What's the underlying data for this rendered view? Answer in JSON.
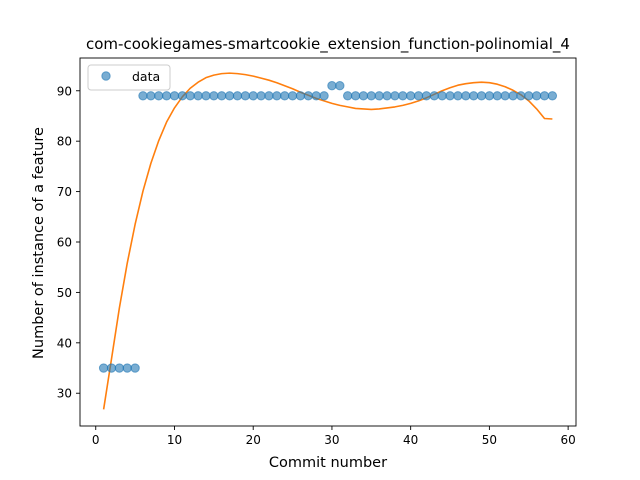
{
  "chart_data": {
    "type": "scatter",
    "title": "com-cookiegames-smartcookie_extension_function-polinomial_4",
    "xlabel": "Commit number",
    "ylabel": "Number of instance of a feature",
    "xlim": [
      -2,
      61
    ],
    "ylim": [
      23.5,
      96.5
    ],
    "xticks": [
      0,
      10,
      20,
      30,
      40,
      50,
      60
    ],
    "yticks": [
      30,
      40,
      50,
      60,
      70,
      80,
      90
    ],
    "legend": {
      "position": "top-left",
      "entries": [
        "data"
      ]
    },
    "grid": false,
    "series": [
      {
        "name": "data",
        "kind": "scatter",
        "color": "#1f77b4",
        "x": [
          1,
          2,
          3,
          4,
          5,
          6,
          7,
          8,
          9,
          10,
          11,
          12,
          13,
          14,
          15,
          16,
          17,
          18,
          19,
          20,
          21,
          22,
          23,
          24,
          25,
          26,
          27,
          28,
          29,
          30,
          31,
          32,
          33,
          34,
          35,
          36,
          37,
          38,
          39,
          40,
          41,
          42,
          43,
          44,
          45,
          46,
          47,
          48,
          49,
          50,
          51,
          52,
          53,
          54,
          55,
          56,
          57,
          58
        ],
        "y": [
          35,
          35,
          35,
          35,
          35,
          89,
          89,
          89,
          89,
          89,
          89,
          89,
          89,
          89,
          89,
          89,
          89,
          89,
          89,
          89,
          89,
          89,
          89,
          89,
          89,
          89,
          89,
          89,
          89,
          91,
          91,
          89,
          89,
          89,
          89,
          89,
          89,
          89,
          89,
          89,
          89,
          89,
          89,
          89,
          89,
          89,
          89,
          89,
          89,
          89,
          89,
          89,
          89,
          89,
          89,
          89,
          89,
          89
        ]
      },
      {
        "kind": "line",
        "color": "#ff7f0e",
        "x": [
          1,
          2,
          3,
          4,
          5,
          6,
          7,
          8,
          9,
          10,
          11,
          12,
          13,
          14,
          15,
          16,
          17,
          18,
          19,
          20,
          21,
          22,
          23,
          24,
          25,
          26,
          27,
          28,
          29,
          30,
          31,
          32,
          33,
          34,
          35,
          36,
          37,
          38,
          39,
          40,
          41,
          42,
          43,
          44,
          45,
          46,
          47,
          48,
          49,
          50,
          51,
          52,
          53,
          54,
          55,
          56,
          57,
          58
        ],
        "y": [
          26.8,
          36.8,
          46.9,
          55.8,
          63.5,
          70.1,
          75.6,
          80.1,
          83.8,
          86.6,
          88.8,
          90.5,
          91.7,
          92.6,
          93.1,
          93.4,
          93.5,
          93.4,
          93.2,
          92.9,
          92.5,
          92.1,
          91.6,
          91.0,
          90.4,
          89.7,
          89.1,
          88.5,
          88.0,
          87.5,
          87.1,
          86.8,
          86.5,
          86.4,
          86.3,
          86.4,
          86.6,
          86.8,
          87.1,
          87.5,
          88.0,
          88.6,
          89.3,
          90.0,
          90.6,
          91.1,
          91.4,
          91.6,
          91.7,
          91.6,
          91.3,
          90.8,
          90.1,
          89.2,
          88.0,
          86.4,
          84.5,
          84.4
        ]
      }
    ]
  }
}
